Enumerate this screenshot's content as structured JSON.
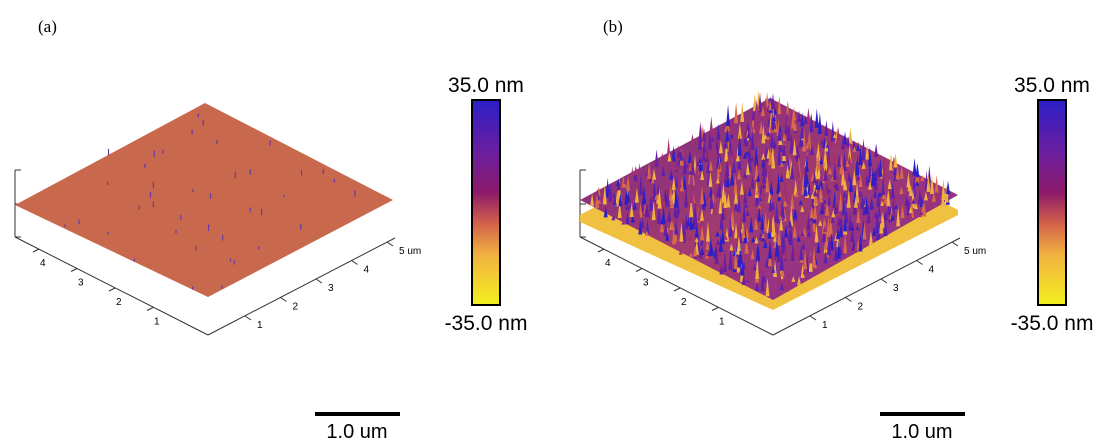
{
  "panels": [
    {
      "label": "(a)",
      "colorbar": {
        "max": "35.0 nm",
        "min": "-35.0 nm"
      },
      "scale_bar": "1.0 um",
      "left_axis_ticks": [
        "4",
        "3",
        "2",
        "1"
      ],
      "right_axis_ticks": [
        "1",
        "2",
        "3",
        "4",
        "5 um"
      ]
    },
    {
      "label": "(b)",
      "colorbar": {
        "max": "35.0 nm",
        "min": "-35.0 nm"
      },
      "scale_bar": "1.0 um",
      "left_axis_ticks": [
        "4",
        "3",
        "2",
        "1"
      ],
      "right_axis_ticks": [
        "1",
        "2",
        "3",
        "4",
        "5 um"
      ]
    }
  ]
}
